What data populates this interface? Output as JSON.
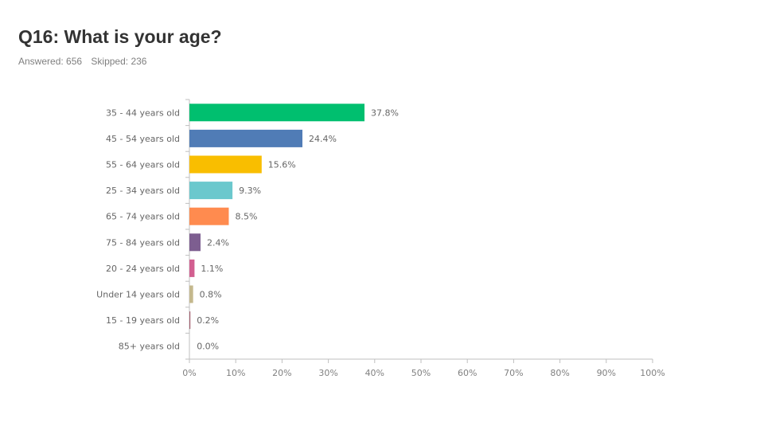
{
  "header": {
    "title": "Q16: What is your age?",
    "answered": "Answered: 656",
    "skipped": "Skipped: 236"
  },
  "chart_data": {
    "type": "bar",
    "orientation": "horizontal",
    "categories": [
      "35 - 44 years old",
      "45 - 54 years old",
      "55 - 64 years old",
      "25 - 34 years old",
      "65 - 74 years old",
      "75 - 84 years old",
      "20 - 24 years old",
      "Under 14 years old",
      "15 - 19 years old",
      "85+ years old"
    ],
    "values": [
      37.8,
      24.4,
      15.6,
      9.3,
      8.5,
      2.4,
      1.1,
      0.8,
      0.2,
      0.0
    ],
    "value_labels": [
      "37.8%",
      "24.4%",
      "15.6%",
      "9.3%",
      "8.5%",
      "2.4%",
      "1.1%",
      "0.8%",
      "0.2%",
      "0.0%"
    ],
    "colors": [
      "#00bf6f",
      "#507cb6",
      "#f9be00",
      "#6bc8cd",
      "#ff8b4f",
      "#7d5e90",
      "#d25f90",
      "#c4b88d",
      "#a25f6e",
      "#888888"
    ],
    "xlim": [
      0,
      100
    ],
    "xticks": [
      "0%",
      "10%",
      "20%",
      "30%",
      "40%",
      "50%",
      "60%",
      "70%",
      "80%",
      "90%",
      "100%"
    ],
    "grid": false,
    "legend": "none"
  }
}
